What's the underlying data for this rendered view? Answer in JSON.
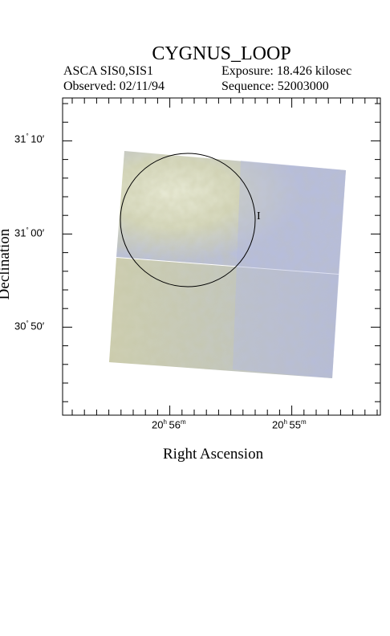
{
  "header": {
    "title": "CYGNUS_LOOP",
    "instrument": "ASCA SIS0,SIS1",
    "exposure": "Exposure: 18.426 kilosec",
    "observed": "Observed: 02/11/94",
    "sequence": "Sequence: 52003000"
  },
  "axes": {
    "xlabel": "Right Ascension",
    "ylabel": "Declination",
    "xticks": [
      {
        "h": "20",
        "m": "56"
      },
      {
        "h": "20",
        "m": "55"
      }
    ],
    "yticks": [
      {
        "deg": "31",
        "min": "10"
      },
      {
        "deg": "31",
        "min": "00"
      },
      {
        "deg": "30",
        "min": "50"
      }
    ]
  },
  "marker_label": "I",
  "colors": {
    "image_blue": "#b7bedc",
    "image_yellow": "#cfd0ad",
    "image_bright": "#e4e6d2",
    "frame": "#000000"
  }
}
